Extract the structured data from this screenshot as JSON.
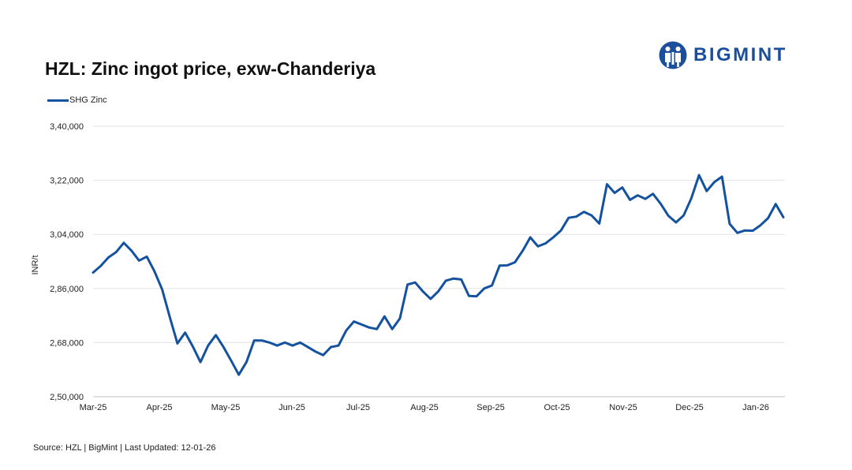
{
  "title": "HZL:  Zinc ingot price, exw-Chanderiya",
  "logo": {
    "text": "BIGMINT",
    "icon": "bigmint-logo-icon",
    "color": "#1b4f9c"
  },
  "source": "Source: HZL | BigMint | Last Updated: 12-01-26",
  "chart_data": {
    "type": "line",
    "ylabel": "INR/t",
    "ylim": [
      250000,
      340000
    ],
    "yticks": [
      250000,
      268000,
      286000,
      304000,
      322000,
      340000
    ],
    "ytick_labels": [
      "2,50,000",
      "2,68,000",
      "2,86,000",
      "3,04,000",
      "3,22,000",
      "3,40,000"
    ],
    "xticks": [
      "Mar-25",
      "Apr-25",
      "May-25",
      "Jun-25",
      "Jul-25",
      "Aug-25",
      "Sep-25",
      "Oct-25",
      "Nov-25",
      "Dec-25",
      "Jan-26"
    ],
    "grid": true,
    "legend_position": "top-left",
    "series": [
      {
        "name": "SHG Zinc",
        "color": "#1452a0",
        "values": [
          291300,
          293500,
          296300,
          298100,
          301200,
          298600,
          295300,
          296600,
          291700,
          285700,
          276500,
          267700,
          271300,
          266700,
          261500,
          267000,
          270500,
          266500,
          262000,
          257300,
          261500,
          268700,
          268700,
          268000,
          267000,
          268000,
          267000,
          268000,
          266500,
          265000,
          263800,
          266500,
          267000,
          272000,
          275000,
          274000,
          273000,
          272500,
          276700,
          272500,
          276000,
          287300,
          288000,
          285000,
          282500,
          285000,
          288600,
          289300,
          289000,
          283500,
          283400,
          286000,
          287000,
          293600,
          293700,
          294700,
          298500,
          303000,
          300000,
          301000,
          303000,
          305300,
          309500,
          309900,
          311500,
          310300,
          307600,
          320700,
          317800,
          319600,
          315500,
          317000,
          315800,
          317500,
          314200,
          310200,
          308000,
          310300,
          316000,
          323700,
          318400,
          321400,
          323200,
          307500,
          304500,
          305300,
          305200,
          307000,
          309400,
          314100,
          309700
        ]
      }
    ]
  }
}
